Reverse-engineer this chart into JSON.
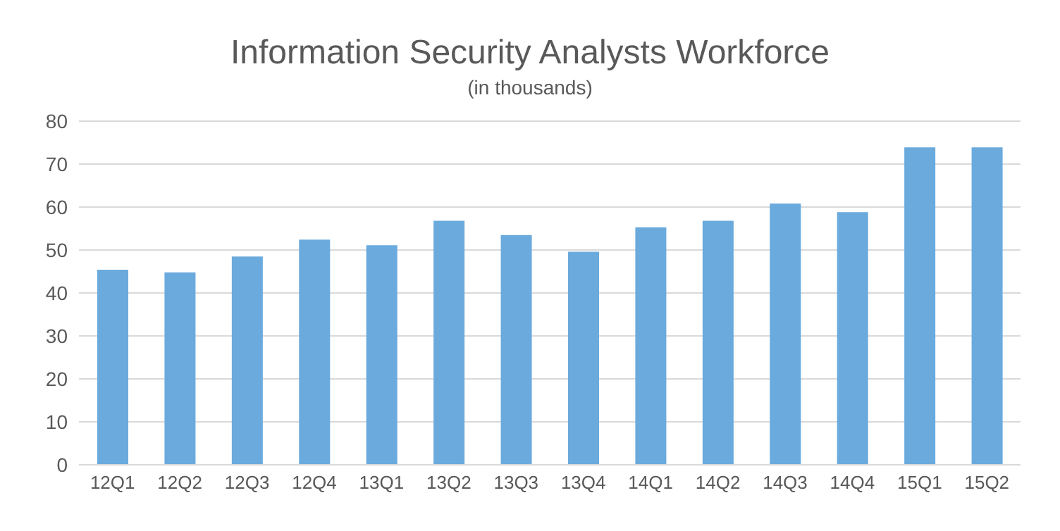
{
  "chart_data": {
    "type": "bar",
    "title": "Information Security Analysts Workforce",
    "subtitle": "(in thousands)",
    "categories": [
      "12Q1",
      "12Q2",
      "12Q3",
      "12Q4",
      "13Q1",
      "13Q2",
      "13Q3",
      "13Q4",
      "14Q1",
      "14Q2",
      "14Q3",
      "14Q4",
      "15Q1",
      "15Q2"
    ],
    "values": [
      45.4,
      44.8,
      48.5,
      52.4,
      51.1,
      56.8,
      53.5,
      49.6,
      55.3,
      56.8,
      60.8,
      58.8,
      73.9,
      73.9
    ],
    "color": "#6aaadd",
    "ylim": [
      0,
      80
    ],
    "yticks": [
      0,
      10,
      20,
      30,
      40,
      50,
      60,
      70,
      80
    ],
    "grid": "y",
    "legend": false
  }
}
